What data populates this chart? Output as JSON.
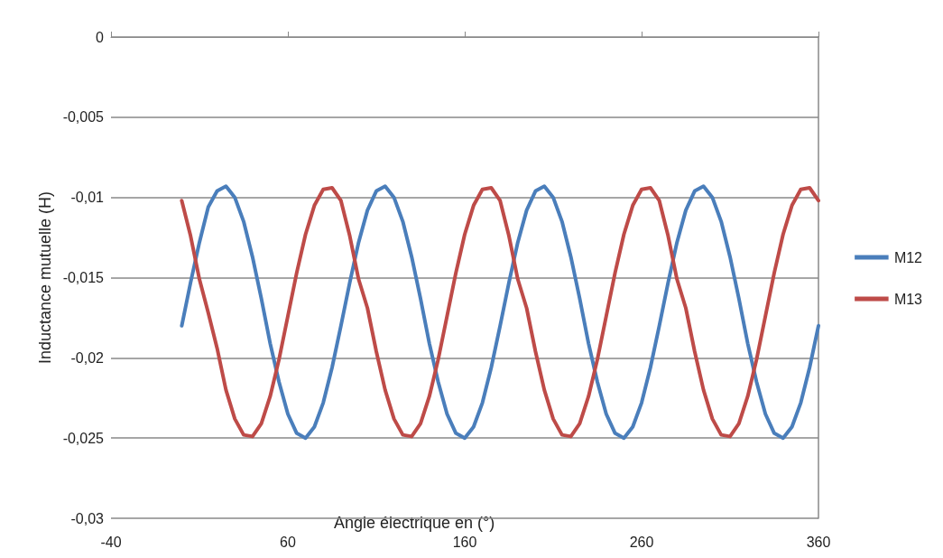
{
  "chart_data": {
    "type": "line",
    "xlabel": "Angle électrique en (°)",
    "ylabel": "Inductance mutuelle (H)",
    "x": [
      0,
      5,
      10,
      15,
      20,
      25,
      30,
      35,
      40,
      45,
      50,
      55,
      60,
      65,
      70,
      75,
      80,
      85,
      90,
      95,
      100,
      105,
      110,
      115,
      120,
      125,
      130,
      135,
      140,
      145,
      150,
      155,
      160,
      165,
      170,
      175,
      180,
      185,
      190,
      195,
      200,
      205,
      210,
      215,
      220,
      225,
      230,
      235,
      240,
      245,
      250,
      255,
      260,
      265,
      270,
      275,
      280,
      285,
      290,
      295,
      300,
      305,
      310,
      315,
      320,
      325,
      330,
      335,
      340,
      345,
      350,
      355,
      360
    ],
    "series": [
      {
        "name": "M12",
        "color": "#4a7ebb",
        "values": [
          -0.018,
          -0.0153,
          -0.0128,
          -0.0106,
          -0.0096,
          -0.0093,
          -0.01,
          -0.0115,
          -0.0137,
          -0.0163,
          -0.0191,
          -0.0215,
          -0.0235,
          -0.0247,
          -0.025,
          -0.0243,
          -0.0228,
          -0.0206,
          -0.018,
          -0.0153,
          -0.0128,
          -0.0108,
          -0.0096,
          -0.0093,
          -0.01,
          -0.0115,
          -0.0137,
          -0.0163,
          -0.0191,
          -0.0215,
          -0.0235,
          -0.0247,
          -0.025,
          -0.0243,
          -0.0228,
          -0.0206,
          -0.018,
          -0.0153,
          -0.0128,
          -0.0108,
          -0.0096,
          -0.0093,
          -0.01,
          -0.0115,
          -0.0137,
          -0.0163,
          -0.0191,
          -0.0215,
          -0.0235,
          -0.0247,
          -0.025,
          -0.0243,
          -0.0228,
          -0.0206,
          -0.018,
          -0.0153,
          -0.0128,
          -0.0108,
          -0.0096,
          -0.0093,
          -0.01,
          -0.0115,
          -0.0137,
          -0.0163,
          -0.0191,
          -0.0215,
          -0.0235,
          -0.0247,
          -0.025,
          -0.0243,
          -0.0228,
          -0.0206,
          -0.018
        ]
      },
      {
        "name": "M13",
        "color": "#be4b48",
        "values": [
          -0.0102,
          -0.0124,
          -0.0151,
          -0.0172,
          -0.0194,
          -0.022,
          -0.0238,
          -0.0248,
          -0.0249,
          -0.0241,
          -0.0224,
          -0.0201,
          -0.0174,
          -0.0147,
          -0.0123,
          -0.0105,
          -0.0095,
          -0.0094,
          -0.0102,
          -0.0124,
          -0.0151,
          -0.0169,
          -0.0196,
          -0.022,
          -0.0238,
          -0.0248,
          -0.0249,
          -0.0241,
          -0.0224,
          -0.0201,
          -0.0174,
          -0.0147,
          -0.0123,
          -0.0105,
          -0.0095,
          -0.0094,
          -0.0102,
          -0.0124,
          -0.0151,
          -0.0169,
          -0.0196,
          -0.022,
          -0.0238,
          -0.0248,
          -0.0249,
          -0.0241,
          -0.0224,
          -0.0201,
          -0.0174,
          -0.0147,
          -0.0123,
          -0.0105,
          -0.0095,
          -0.0094,
          -0.0102,
          -0.0124,
          -0.0151,
          -0.0169,
          -0.0196,
          -0.022,
          -0.0238,
          -0.0248,
          -0.0249,
          -0.0241,
          -0.0224,
          -0.0201,
          -0.0174,
          -0.0147,
          -0.0123,
          -0.0105,
          -0.0095,
          -0.0094,
          -0.0102
        ]
      }
    ],
    "xlim": [
      -40,
      360
    ],
    "xticks": [
      -40,
      60,
      160,
      260,
      360
    ],
    "ylim": [
      -0.03,
      0
    ],
    "yticks": [
      {
        "value": -0.03,
        "label": "-0,03"
      },
      {
        "value": -0.025,
        "label": "-0,025"
      },
      {
        "value": -0.02,
        "label": "-0,02"
      },
      {
        "value": -0.015,
        "label": "-0,015"
      },
      {
        "value": -0.01,
        "label": "-0,01"
      },
      {
        "value": -0.005,
        "label": "-0,005"
      },
      {
        "value": 0,
        "label": "0"
      }
    ],
    "grid": "y",
    "legend": "right",
    "marker": "none",
    "line_style": "solid"
  }
}
